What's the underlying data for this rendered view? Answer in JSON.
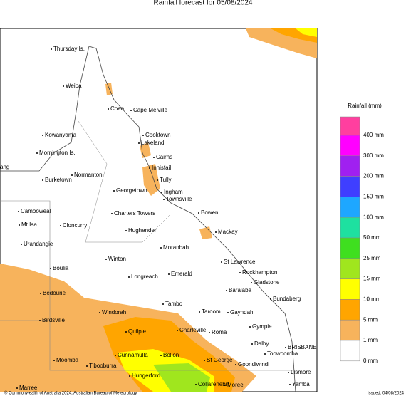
{
  "title": "Rainfall forecast for 05/08/2024",
  "legend": {
    "title": "Rainfall (mm)",
    "labels": [
      "400 mm",
      "300 mm",
      "200 mm",
      "150 mm",
      "100 mm",
      "50 mm",
      "25 mm",
      "15 mm",
      "10 mm",
      "5 mm",
      "1 mm",
      "0 mm"
    ],
    "colors": [
      "#ff3f9f",
      "#ff00ff",
      "#a020f0",
      "#3f3fff",
      "#1ea7ff",
      "#1ee0a0",
      "#3fdf1f",
      "#a0e61e",
      "#ffff00",
      "#ffa500",
      "#f7b35c",
      "#ffffff"
    ]
  },
  "places": [
    "Thursday Is.",
    "Weipa",
    "Coen",
    "Cape Melville",
    "Kowanyama",
    "Cooktown",
    "Lakeland",
    "Mornington Is.",
    "Cairns",
    "Innisfail",
    "ang",
    "Normanton",
    "Burketown",
    "Tully",
    "Georgetown",
    "Ingham",
    "Townsville",
    "Camooweal",
    "Charters Towers",
    "Bowen",
    "Mt Isa",
    "Cloncurry",
    "Hughenden",
    "Mackay",
    "Urandangie",
    "Moranbah",
    "St Lawrence",
    "Winton",
    "Boulia",
    "Rockhampton",
    "Longreach",
    "Emerald",
    "Gladstone",
    "Bedourie",
    "Baralaba",
    "Bundaberg",
    "Tambo",
    "Windorah",
    "Taroom",
    "Gayndah",
    "Birdsville",
    "Charleville",
    "Quilpie",
    "Roma",
    "Gympie",
    "Dalby",
    "BRISBANE",
    "Toowoomba",
    "Cunnamulla",
    "Bollon",
    "Moomba",
    "St George",
    "Goondiwindi",
    "Tibooburra",
    "Lismore",
    "Hungerford",
    "Collarenebri",
    "Moree",
    "Yamba",
    "Marree"
  ],
  "footer": {
    "copyright": "© Commonwealth of Australia 2024, Australian Bureau of Meteorology",
    "issued": "Issued: 04/08/2024"
  }
}
